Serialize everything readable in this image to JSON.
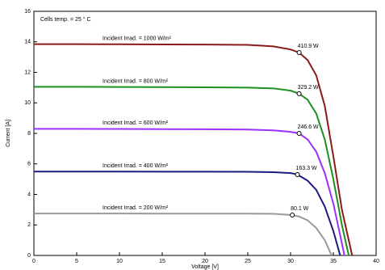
{
  "chart_data": {
    "type": "line",
    "annotation": "Cells temp. = 25 ° C",
    "xlabel": "Voltage [V]",
    "ylabel": "Current [A]",
    "xlim": [
      0,
      40
    ],
    "xticks": [
      0,
      5,
      10,
      15,
      20,
      25,
      30,
      35,
      40
    ],
    "ylim": [
      0,
      16
    ],
    "yticks": [
      0,
      2,
      4,
      6,
      8,
      10,
      12,
      14,
      16
    ],
    "grid": false,
    "series": [
      {
        "name": "Incident Irrad. = 1000 W/m²",
        "color": "#8b1a1a",
        "x": [
          0,
          5,
          10,
          15,
          20,
          25,
          28,
          30,
          31,
          32,
          33,
          34,
          35,
          36,
          37.2
        ],
        "values": [
          13.85,
          13.85,
          13.84,
          13.83,
          13.82,
          13.8,
          13.7,
          13.5,
          13.3,
          12.8,
          11.8,
          9.8,
          6.5,
          3.0,
          0
        ],
        "mpp": {
          "x": 31,
          "y": 13.3,
          "label": "410.9 W"
        }
      },
      {
        "name": "Incident Irrad. = 800 W/m²",
        "color": "#1f8f1f",
        "x": [
          0,
          5,
          10,
          15,
          20,
          25,
          28,
          30,
          31,
          32,
          33,
          34,
          35,
          36,
          36.8
        ],
        "values": [
          11.05,
          11.05,
          11.04,
          11.03,
          11.02,
          11.0,
          10.95,
          10.8,
          10.6,
          10.2,
          9.3,
          7.6,
          5.0,
          2.0,
          0
        ],
        "mpp": {
          "x": 31,
          "y": 10.6,
          "label": "329.2 W"
        }
      },
      {
        "name": "Incident Irrad. = 600 W/m²",
        "color": "#9b30ff",
        "x": [
          0,
          5,
          10,
          15,
          20,
          25,
          28,
          30,
          31,
          32,
          33,
          34,
          35,
          36,
          36.3
        ],
        "values": [
          8.3,
          8.3,
          8.29,
          8.28,
          8.27,
          8.25,
          8.2,
          8.1,
          8.0,
          7.6,
          6.8,
          5.4,
          3.4,
          0.8,
          0
        ],
        "mpp": {
          "x": 31,
          "y": 8.0,
          "label": "246.6 W"
        }
      },
      {
        "name": "Incident Irrad. = 400 W/m²",
        "color": "#1a1a80",
        "x": [
          0,
          5,
          10,
          15,
          20,
          25,
          28,
          30,
          30.8,
          32,
          33,
          34,
          35,
          35.8
        ],
        "values": [
          5.5,
          5.5,
          5.5,
          5.49,
          5.49,
          5.48,
          5.46,
          5.4,
          5.3,
          4.9,
          4.3,
          3.2,
          1.6,
          0
        ],
        "mpp": {
          "x": 30.8,
          "y": 5.3,
          "label": "163.3 W"
        }
      },
      {
        "name": "Incident Irrad. = 200 W/m²",
        "color": "#999999",
        "x": [
          0,
          5,
          10,
          15,
          20,
          25,
          28,
          30.2,
          31,
          32,
          33,
          34,
          34.8
        ],
        "values": [
          2.75,
          2.75,
          2.75,
          2.74,
          2.74,
          2.74,
          2.73,
          2.65,
          2.55,
          2.3,
          1.8,
          1.0,
          0
        ],
        "mpp": {
          "x": 30.2,
          "y": 2.65,
          "label": "80.1 W"
        }
      }
    ]
  }
}
